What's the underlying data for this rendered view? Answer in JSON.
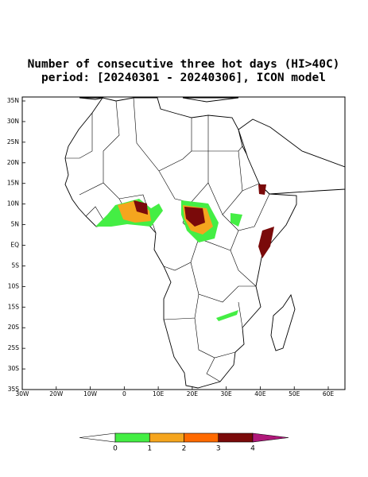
{
  "title": [
    "Number of consecutive three hot days (HI>40C)",
    "period: [20240301 - 20240306], ICON model"
  ],
  "lat_labels": [
    "35N",
    "30N",
    "25N",
    "20N",
    "15N",
    "10N",
    "5N",
    "EQ",
    "5S",
    "10S",
    "15S",
    "20S",
    "25S",
    "30S",
    "35S"
  ],
  "lon_labels": [
    "30W",
    "20W",
    "10W",
    "0",
    "10E",
    "20E",
    "30E",
    "40E",
    "50E",
    "60E"
  ],
  "colorbar": {
    "labels": [
      0,
      1,
      2,
      3,
      4
    ],
    "colors": [
      "#ffffff",
      "#44ee44",
      "#f5a51e",
      "#ff6a00",
      "#7a0a0a",
      "#b0187a"
    ]
  }
}
